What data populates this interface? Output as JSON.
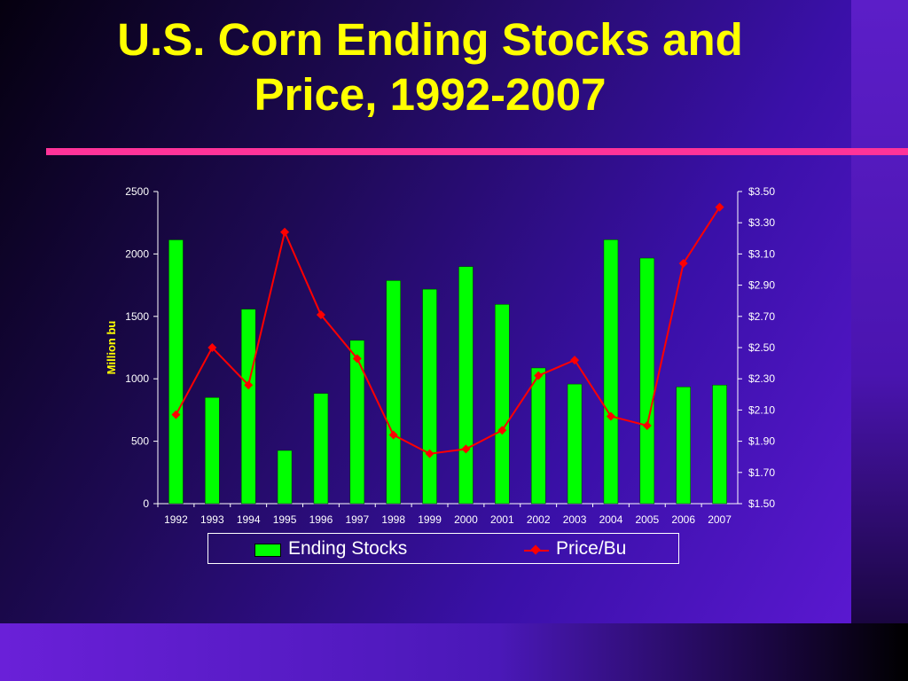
{
  "title_line1": "U.S. Corn Ending Stocks and",
  "title_line2": "Price, 1992-2007",
  "colors": {
    "title": "#ffff00",
    "rule": "#ff3399",
    "bars": "#00ff00",
    "line": "#ff0000",
    "axis_text": "#ffffff",
    "ylabel": "#ffff00"
  },
  "chart_data": {
    "type": "bar",
    "categories": [
      "1992",
      "1993",
      "1994",
      "1995",
      "1996",
      "1997",
      "1998",
      "1999",
      "2000",
      "2001",
      "2002",
      "2003",
      "2004",
      "2005",
      "2006",
      "2007"
    ],
    "series": [
      {
        "name": "Ending Stocks",
        "type": "bar",
        "axis": "left",
        "values": [
          2113,
          850,
          1558,
          426,
          883,
          1308,
          1787,
          1718,
          1899,
          1596,
          1087,
          958,
          2114,
          1967,
          935,
          950
        ]
      },
      {
        "name": "Price/Bu",
        "type": "line",
        "axis": "right",
        "values": [
          2.07,
          2.5,
          2.26,
          3.24,
          2.71,
          2.43,
          1.94,
          1.82,
          1.85,
          1.97,
          2.32,
          2.42,
          2.06,
          2.0,
          3.04,
          3.4
        ]
      }
    ],
    "ylabel": "Million bu",
    "ylim": [
      0,
      2500
    ],
    "yticks": [
      "0",
      "500",
      "1000",
      "1500",
      "2000",
      "2500"
    ],
    "y2lim": [
      1.5,
      3.5
    ],
    "y2ticks": [
      "$1.50",
      "$1.70",
      "$1.90",
      "$2.10",
      "$2.30",
      "$2.50",
      "$2.70",
      "$2.90",
      "$3.10",
      "$3.30",
      "$3.50"
    ],
    "legend_position": "bottom"
  },
  "legend": {
    "stocks_label": "Ending Stocks",
    "price_label": "Price/Bu"
  }
}
